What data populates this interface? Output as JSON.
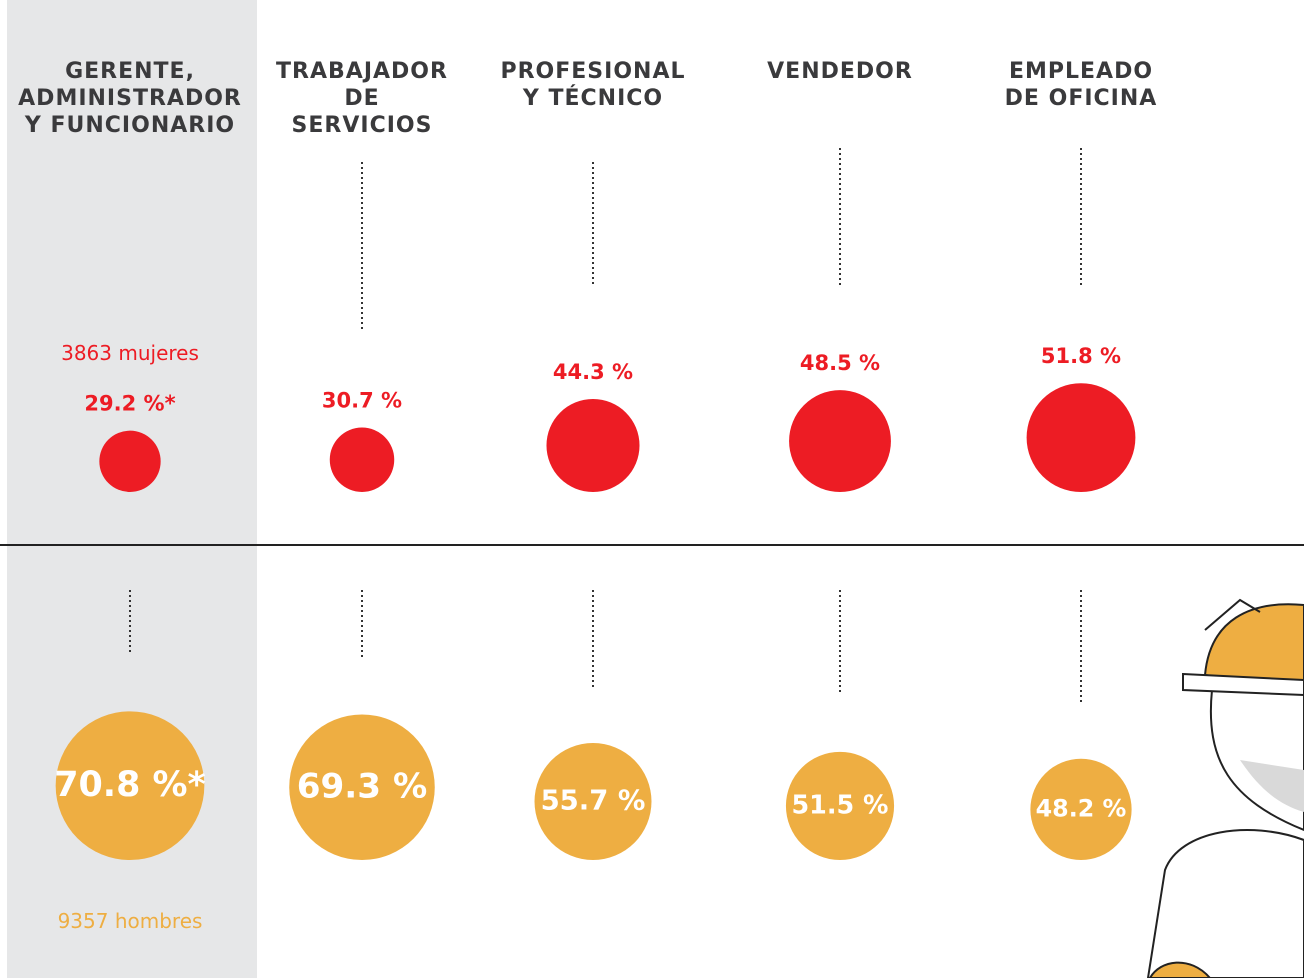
{
  "chart_data": {
    "type": "bubble",
    "categories": [
      [
        "GERENTE,",
        "ADMINISTRADOR",
        "Y FUNCIONARIO"
      ],
      [
        "TRABAJADOR",
        "DE",
        "SERVICIOS"
      ],
      [
        "PROFESIONAL",
        "Y TÉCNICO"
      ],
      [
        "VENDEDOR"
      ],
      [
        "EMPLEADO",
        "DE OFICINA"
      ]
    ],
    "series": [
      {
        "name": "mujeres",
        "color": "#ed1c24",
        "values": [
          29.2,
          30.7,
          44.3,
          48.5,
          51.8
        ],
        "value_labels": [
          "29.2 %*",
          "30.7 %",
          "44.3 %",
          "48.5 %",
          "51.8 %"
        ]
      },
      {
        "name": "hombres",
        "color": "#eeae42",
        "values": [
          70.8,
          69.3,
          55.7,
          51.5,
          48.2
        ],
        "value_labels": [
          "70.8 %*",
          "69.3 %",
          "55.7 %",
          "51.5 %",
          "48.2 %"
        ]
      }
    ],
    "annotations": [
      "3863 mujeres",
      "9357 hombres"
    ]
  }
}
